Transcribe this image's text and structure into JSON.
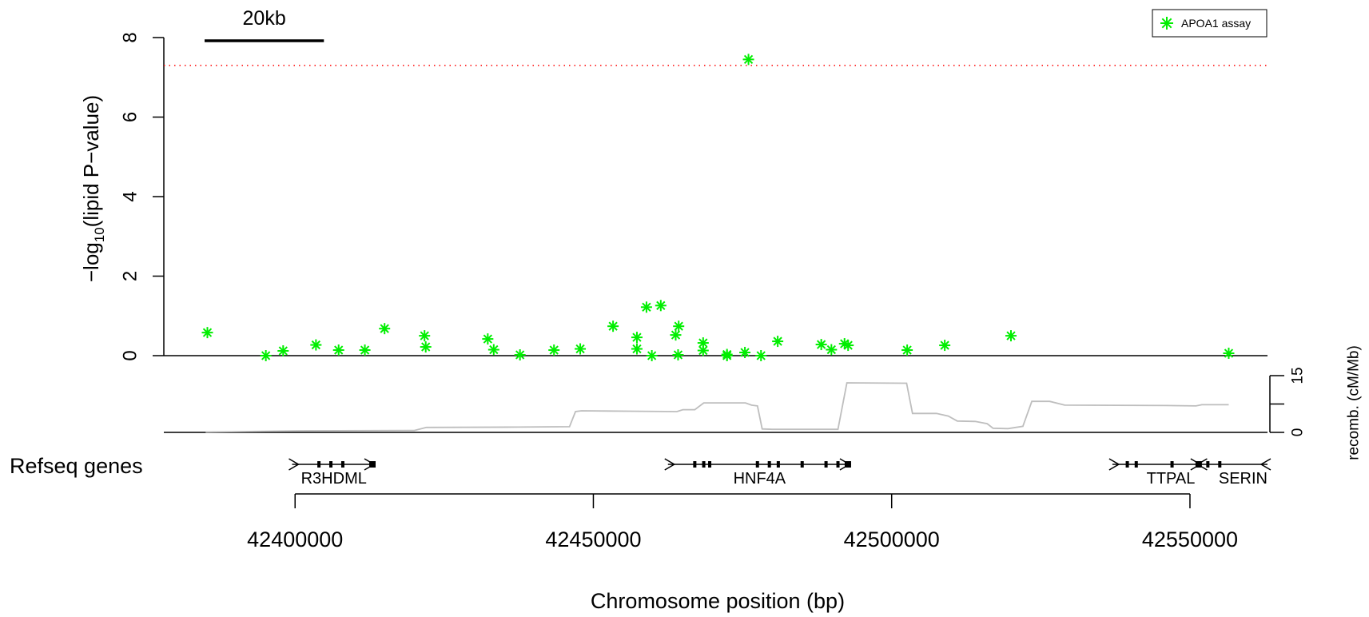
{
  "colors": {
    "points": "#00ee00",
    "threshold": "#ff0000",
    "recombination": "#bebebe",
    "axis": "#000000"
  },
  "chart_data": {
    "type": "scatter",
    "title": "",
    "xlabel": "Chromosome position (bp)",
    "ylabel_prefix": "−log",
    "ylabel_sub": "10",
    "ylabel_suffix": "(lipid P−value)",
    "xlim": [
      42378000,
      42563000
    ],
    "ylim": [
      0,
      8
    ],
    "x_ticks": [
      42400000,
      42450000,
      42500000,
      42550000
    ],
    "x_tick_labels": [
      "42400000",
      "42450000",
      "42500000",
      "42550000"
    ],
    "y_ticks": [
      0,
      2,
      4,
      6,
      8
    ],
    "y_tick_labels": [
      "0",
      "2",
      "4",
      "6",
      "8"
    ],
    "threshold": 7.3,
    "scale_bar_label": "20kb",
    "scale_bar_kb": 20000,
    "legend": {
      "position": "top-right",
      "marker": "asterisk"
    },
    "series": [
      {
        "name": "APOA1 assay",
        "points": [
          [
            42385300,
            0.58
          ],
          [
            42395100,
            0.0
          ],
          [
            42398000,
            0.12
          ],
          [
            42403500,
            0.27
          ],
          [
            42407300,
            0.14
          ],
          [
            42411700,
            0.14
          ],
          [
            42415000,
            0.68
          ],
          [
            42421700,
            0.5
          ],
          [
            42421900,
            0.22
          ],
          [
            42432300,
            0.42
          ],
          [
            42433300,
            0.15
          ],
          [
            42437700,
            0.02
          ],
          [
            42443400,
            0.14
          ],
          [
            42447800,
            0.17
          ],
          [
            42453300,
            0.74
          ],
          [
            42457300,
            0.46
          ],
          [
            42457300,
            0.17
          ],
          [
            42458900,
            1.22
          ],
          [
            42459800,
            0.0
          ],
          [
            42461300,
            1.26
          ],
          [
            42463800,
            0.52
          ],
          [
            42464300,
            0.74
          ],
          [
            42464200,
            0.02
          ],
          [
            42468400,
            0.32
          ],
          [
            42468400,
            0.13
          ],
          [
            42472400,
            0.03
          ],
          [
            42472400,
            0.0
          ],
          [
            42475400,
            0.08
          ],
          [
            42476000,
            7.45
          ],
          [
            42478100,
            0.0
          ],
          [
            42480900,
            0.36
          ],
          [
            42488200,
            0.28
          ],
          [
            42489900,
            0.15
          ],
          [
            42492100,
            0.3
          ],
          [
            42492700,
            0.26
          ],
          [
            42502600,
            0.14
          ],
          [
            42508900,
            0.26
          ],
          [
            42520000,
            0.5
          ],
          [
            42556500,
            0.06
          ]
        ]
      }
    ],
    "recombination": {
      "label": "recomb. (cM/Mb)",
      "ticks": [
        0,
        15
      ],
      "tick_labels": [
        "0",
        "15"
      ],
      "max": 15,
      "points": [
        [
          42385000,
          0.1
        ],
        [
          42395000,
          0.3
        ],
        [
          42400000,
          0.4
        ],
        [
          42420000,
          0.5
        ],
        [
          42422000,
          1.3
        ],
        [
          42437000,
          1.4
        ],
        [
          42446000,
          1.5
        ],
        [
          42447000,
          5.5
        ],
        [
          42448000,
          5.7
        ],
        [
          42456000,
          5.6
        ],
        [
          42464000,
          5.5
        ],
        [
          42465000,
          6.0
        ],
        [
          42467000,
          6.0
        ],
        [
          42468500,
          7.8
        ],
        [
          42475500,
          7.8
        ],
        [
          42476500,
          7.2
        ],
        [
          42477500,
          7.0
        ],
        [
          42478300,
          0.9
        ],
        [
          42480000,
          0.8
        ],
        [
          42491000,
          0.8
        ],
        [
          42492500,
          13.1
        ],
        [
          42502500,
          13.0
        ],
        [
          42503500,
          5.0
        ],
        [
          42507500,
          5.0
        ],
        [
          42509500,
          4.3
        ],
        [
          42511000,
          3.0
        ],
        [
          42514000,
          2.9
        ],
        [
          42516000,
          2.3
        ],
        [
          42517000,
          1.1
        ],
        [
          42519500,
          1.0
        ],
        [
          42522000,
          1.6
        ],
        [
          42523500,
          8.2
        ],
        [
          42526500,
          8.2
        ],
        [
          42529000,
          7.2
        ],
        [
          42546000,
          7.1
        ],
        [
          42551000,
          7.0
        ],
        [
          42552000,
          7.3
        ],
        [
          42556500,
          7.3
        ]
      ]
    },
    "genes_track": {
      "label": "Refseq genes",
      "genes": [
        {
          "name": "R3HDML",
          "start": 42399500,
          "end": 42413500,
          "exons": [
            42404000,
            42406000,
            42408000
          ],
          "strand": "+"
        },
        {
          "name": "HNF4A",
          "start": 42462500,
          "end": 42493200,
          "exons": [
            42467000,
            42468500,
            42469500,
            42477500,
            42479500,
            42481000,
            42485000,
            42489000,
            42491000
          ],
          "strand": "+"
        },
        {
          "name": "TTPAL",
          "start": 42537000,
          "end": 42552000,
          "exons": [
            42539500,
            42541000,
            42547000
          ],
          "strand": "+"
        },
        {
          "name": "SERIN",
          "start": 42551000,
          "end": 42563000,
          "exons": [
            42553000,
            42555000
          ],
          "strand": "-"
        }
      ]
    }
  }
}
